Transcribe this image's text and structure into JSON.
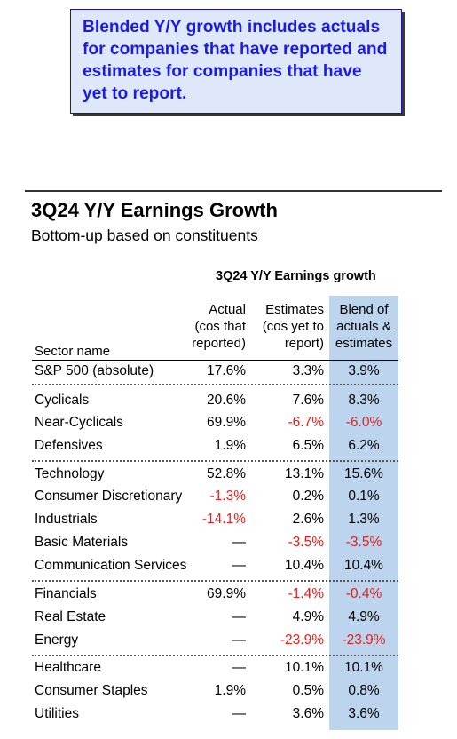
{
  "callout": {
    "lines": [
      "Blended Y/Y growth includes actuals",
      "for companies that have reported and",
      "estimates for companies that have",
      "yet to report."
    ]
  },
  "title": "3Q24 Y/Y Earnings Growth",
  "subtitle": "Bottom-up based on constituents",
  "table": {
    "group_title": "3Q24 Y/Y Earnings growth",
    "headers": {
      "sector": "Sector name",
      "actual": [
        "Actual",
        "(cos that",
        "reported)"
      ],
      "estimates": [
        "Estimates",
        "(cos yet to",
        "report)"
      ],
      "blend": [
        "Blend of",
        "actuals &",
        "estimates"
      ]
    },
    "rows": [
      {
        "name": "S&P 500 (absolute)",
        "actual": "17.6%",
        "estimates": "3.3%",
        "blend": "3.9%"
      },
      {
        "name": "Cyclicals",
        "actual": "20.6%",
        "estimates": "7.6%",
        "blend": "8.3%"
      },
      {
        "name": "Near-Cyclicals",
        "actual": "69.9%",
        "estimates": "-6.7%",
        "blend": "-6.0%"
      },
      {
        "name": "Defensives",
        "actual": "1.9%",
        "estimates": "6.5%",
        "blend": "6.2%"
      },
      {
        "name": "Technology",
        "actual": "52.8%",
        "estimates": "13.1%",
        "blend": "15.6%"
      },
      {
        "name": "Consumer Discretionary",
        "actual": "-1.3%",
        "estimates": "0.2%",
        "blend": "0.1%"
      },
      {
        "name": "Industrials",
        "actual": "-14.1%",
        "estimates": "2.6%",
        "blend": "1.3%"
      },
      {
        "name": "Basic Materials",
        "actual": "—",
        "estimates": "-3.5%",
        "blend": "-3.5%"
      },
      {
        "name": "Communication Services",
        "actual": "—",
        "estimates": "10.4%",
        "blend": "10.4%"
      },
      {
        "name": "Financials",
        "actual": "69.9%",
        "estimates": "-1.4%",
        "blend": "-0.4%"
      },
      {
        "name": "Real Estate",
        "actual": "—",
        "estimates": "4.9%",
        "blend": "4.9%"
      },
      {
        "name": "Energy",
        "actual": "—",
        "estimates": "-23.9%",
        "blend": "-23.9%"
      },
      {
        "name": "Healthcare",
        "actual": "—",
        "estimates": "10.1%",
        "blend": "10.1%"
      },
      {
        "name": "Consumer Staples",
        "actual": "1.9%",
        "estimates": "0.5%",
        "blend": "0.8%"
      },
      {
        "name": "Utilities",
        "actual": "—",
        "estimates": "3.6%",
        "blend": "3.6%"
      }
    ]
  },
  "colors": {
    "callout_text": "#1b1be6",
    "callout_bg": "#dfe7fb",
    "blend_column_bg": "#bdd4ee",
    "negative": "#e3201b"
  }
}
